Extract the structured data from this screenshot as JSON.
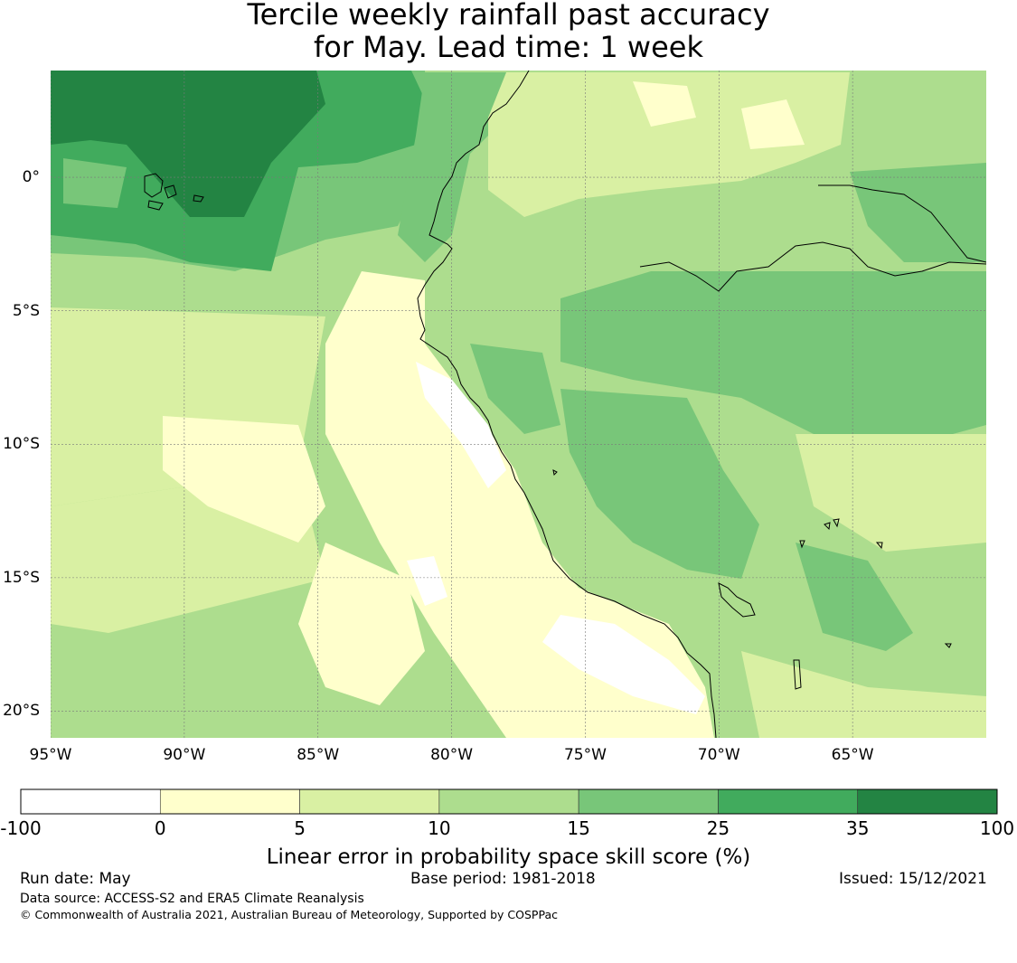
{
  "title": {
    "line1": "Tercile weekly rainfall past accuracy",
    "line2": "for May. Lead time: 1 week"
  },
  "map": {
    "extent": {
      "lon_min": -95,
      "lon_max": -60,
      "lat_min": -21,
      "lat_max": 4
    },
    "lat_ticks": [
      {
        "lat": 0,
        "label": "0°"
      },
      {
        "lat": -5,
        "label": "5°S"
      },
      {
        "lat": -10,
        "label": "10°S"
      },
      {
        "lat": -15,
        "label": "15°S"
      },
      {
        "lat": -20,
        "label": "20°S"
      }
    ],
    "lon_ticks": [
      {
        "lon": -95,
        "label": "95°W"
      },
      {
        "lon": -90,
        "label": "90°W"
      },
      {
        "lon": -85,
        "label": "85°W"
      },
      {
        "lon": -80,
        "label": "80°W"
      },
      {
        "lon": -75,
        "label": "75°W"
      },
      {
        "lon": -70,
        "label": "70°W"
      },
      {
        "lon": -65,
        "label": "65°W"
      }
    ],
    "gridlines": true
  },
  "colorbar": {
    "label": "Linear error in probability space skill score (%)",
    "bounds": [
      "-100",
      "0",
      "5",
      "10",
      "15",
      "25",
      "35",
      "100"
    ],
    "colors": [
      "#ffffff",
      "#ffffcc",
      "#d9f0a3",
      "#addd8e",
      "#78c679",
      "#41ab5d",
      "#238443"
    ]
  },
  "footer": {
    "run_date": "Run date: May",
    "base_period": "Base period: 1981-2018",
    "issued": "Issued: 15/12/2021",
    "data_source": "Data source: ACCESS-S2 and ERA5 Climate Reanalysis",
    "copyright": "© Commonwealth of Australia 2021, Australian Bureau of Meteorology, Supported by COSPPac"
  }
}
